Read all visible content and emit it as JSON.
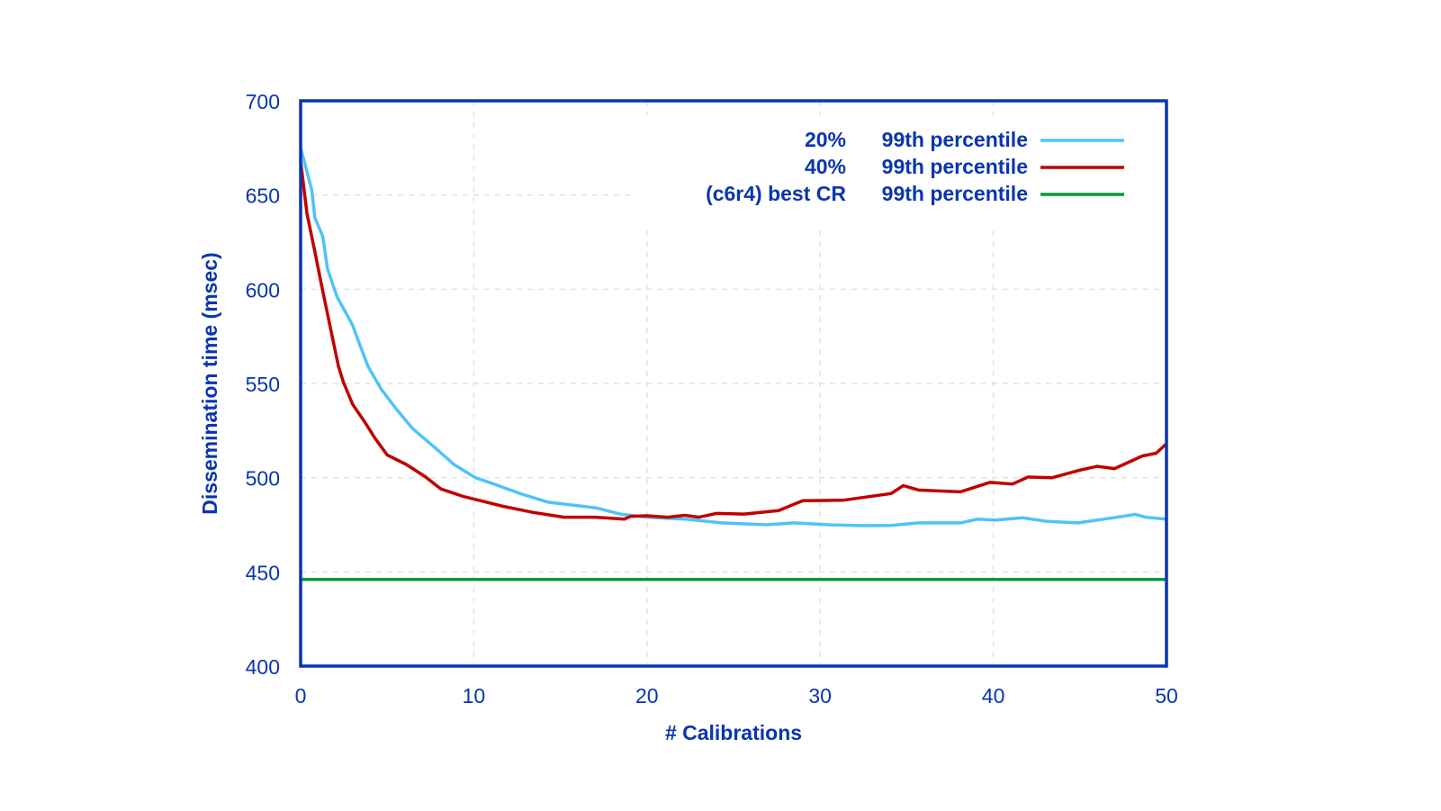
{
  "chart_data": {
    "type": "line",
    "title": "",
    "xlabel": "# Calibrations",
    "ylabel": "Dissemination time (msec)",
    "xlim": [
      0,
      50
    ],
    "ylim": [
      400,
      700
    ],
    "xticks": [
      0,
      10,
      20,
      30,
      40,
      50
    ],
    "yticks": [
      400,
      450,
      500,
      550,
      600,
      650,
      700
    ],
    "grid": true,
    "legend_position": "top-right",
    "axis_color": "#0a35b0",
    "series": [
      {
        "name": "20%",
        "stat": "99th percentile",
        "color": "#4fc3f7",
        "x": [
          0,
          0.64,
          0.82,
          1.28,
          1.55,
          2.1,
          3.0,
          3.4,
          3.9,
          4.65,
          5.56,
          6.47,
          7.75,
          8.85,
          10.1,
          11.2,
          12.7,
          14.3,
          17.05,
          18.5,
          20,
          22.2,
          24.3,
          26.9,
          28.5,
          30.5,
          32.5,
          34.1,
          35.7,
          38.1,
          39.1,
          40.1,
          41.7,
          43.1,
          44.9,
          46.9,
          48.2,
          48.8,
          50
        ],
        "y": [
          675,
          653,
          638,
          628,
          611,
          596,
          581,
          571,
          559,
          547,
          536,
          526,
          516,
          507,
          500,
          496.5,
          491.5,
          487,
          484,
          480.6,
          479,
          478,
          476,
          475,
          476,
          475,
          474.5,
          474.6,
          476,
          476,
          478,
          477.5,
          478.7,
          476.8,
          476,
          478.7,
          480.5,
          479,
          478
        ]
      },
      {
        "name": "40%",
        "stat": "99th percentile",
        "color": "#c00000",
        "x": [
          0,
          0.37,
          0.82,
          1.19,
          1.73,
          2.19,
          2.46,
          3.0,
          3.74,
          4.29,
          5.0,
          6.1,
          7.2,
          8.1,
          9.4,
          11.6,
          13.4,
          15.2,
          17.05,
          18.7,
          19.06,
          20,
          21.2,
          22.2,
          23,
          24,
          25.6,
          27.6,
          29,
          31.3,
          34.1,
          34.8,
          35.7,
          38.1,
          39.8,
          41.1,
          42,
          43.4,
          45,
          46,
          47,
          48.6,
          49.4,
          50
        ],
        "y": [
          668,
          640,
          620,
          603,
          579,
          559,
          551,
          539,
          529,
          521,
          512,
          507,
          500.5,
          494,
          490,
          485,
          481.6,
          479,
          479,
          478,
          479.5,
          479.8,
          479,
          480,
          479,
          481,
          480.7,
          482.5,
          487.8,
          488,
          491.6,
          495.8,
          493.4,
          492.5,
          497.5,
          496.6,
          500.3,
          500,
          504,
          506,
          504.8,
          511.5,
          513,
          518
        ]
      },
      {
        "name": "(c6r4) best CR",
        "stat": "99th percentile",
        "color": "#009a3a",
        "x": [
          0,
          50
        ],
        "y": [
          446,
          446
        ]
      }
    ]
  }
}
